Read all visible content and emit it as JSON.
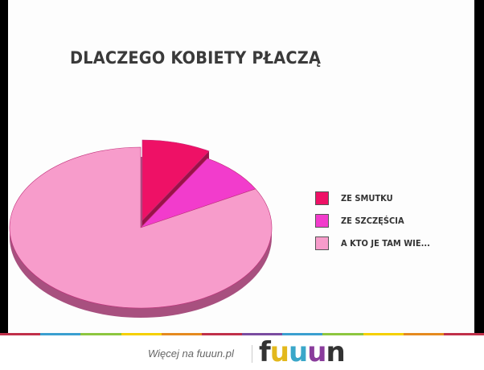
{
  "chart_data": {
    "type": "pie",
    "title": "DLACZEGO KOBIETY PŁACZĄ",
    "slices": [
      {
        "label": "ZE SMUTKU",
        "value": 8.5,
        "color": "#ee1166",
        "exploded": true
      },
      {
        "label": "ZE SZCZĘŚCIA",
        "value": 8.5,
        "color": "#f23ccc",
        "exploded": false
      },
      {
        "label": "A KTO JE TAM WIE...",
        "value": 83,
        "color": "#f79ccb",
        "exploded": false
      }
    ],
    "style": "3d",
    "legend_placement": "right"
  },
  "footer": {
    "more_text": "Więcej na fuuun.pl",
    "logo": "fuuun",
    "logo_colors": [
      "#333333",
      "#e3b81c",
      "#3aa7c9",
      "#8a3c9c",
      "#333333"
    ]
  },
  "stripe_colors": [
    "#c0304a",
    "#3a9fd0",
    "#8dc63f",
    "#f5d000",
    "#e58a1f",
    "#c0304a",
    "#7a4ca0",
    "#3a9fd0",
    "#8dc63f",
    "#f5d000",
    "#e58a1f",
    "#c0304a"
  ]
}
